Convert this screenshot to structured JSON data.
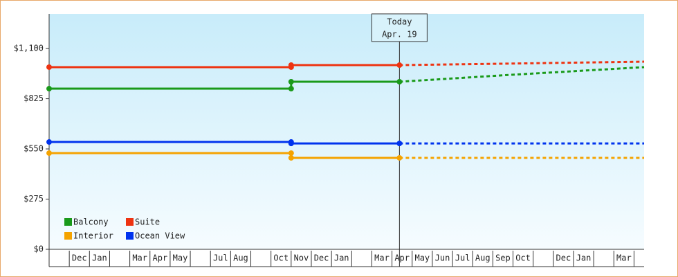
{
  "chart_data": {
    "type": "step-line",
    "categories": [
      null,
      "Dec",
      "Jan",
      null,
      "Mar",
      "Apr",
      "May",
      null,
      "Jul",
      "Aug",
      null,
      "Oct",
      "Nov",
      "Dec",
      "Jan",
      null,
      "Mar",
      "Apr",
      "May",
      "Jun",
      "Jul",
      "Aug",
      "Sep",
      "Oct",
      null,
      "Dec",
      "Jan",
      null,
      "Mar",
      null
    ],
    "xlim": [
      0,
      29.5
    ],
    "ylim": [
      0,
      1290
    ],
    "yticks": [
      {
        "value": 0,
        "label": "$0"
      },
      {
        "value": 275,
        "label": "$275"
      },
      {
        "value": 550,
        "label": "$550"
      },
      {
        "value": 825,
        "label": "$825"
      },
      {
        "value": 1100,
        "label": "$1,100"
      }
    ],
    "annotation": {
      "lines": [
        "Today",
        "Apr. 19"
      ],
      "x": 17.37
    },
    "legend": "lower left",
    "series": [
      {
        "name": "Balcony",
        "color": "#1a9a1a",
        "x": [
          0,
          12,
          12,
          17.37
        ],
        "values": [
          880,
          880,
          918,
          918
        ],
        "forecast_x": [
          17.37,
          22.9,
          29.5
        ],
        "forecast_values": [
          918,
          956,
          998
        ]
      },
      {
        "name": "Suite",
        "color": "#ee3311",
        "x": [
          0,
          12,
          12,
          17.37
        ],
        "values": [
          998,
          998,
          1009,
          1009
        ],
        "forecast_x": [
          17.37,
          29.5
        ],
        "forecast_values": [
          1009,
          1028
        ]
      },
      {
        "name": "Interior",
        "color": "#f5a300",
        "x": [
          0,
          12,
          12,
          17.37
        ],
        "values": [
          527,
          527,
          501,
          501
        ],
        "forecast_x": [
          17.37,
          29.5
        ],
        "forecast_values": [
          501,
          501
        ]
      },
      {
        "name": "Ocean View",
        "color": "#0033ee",
        "x": [
          0,
          12,
          12,
          17.37
        ],
        "values": [
          588,
          588,
          580,
          580
        ],
        "forecast_x": [
          17.37,
          29.5
        ],
        "forecast_values": [
          580,
          580
        ]
      }
    ]
  }
}
